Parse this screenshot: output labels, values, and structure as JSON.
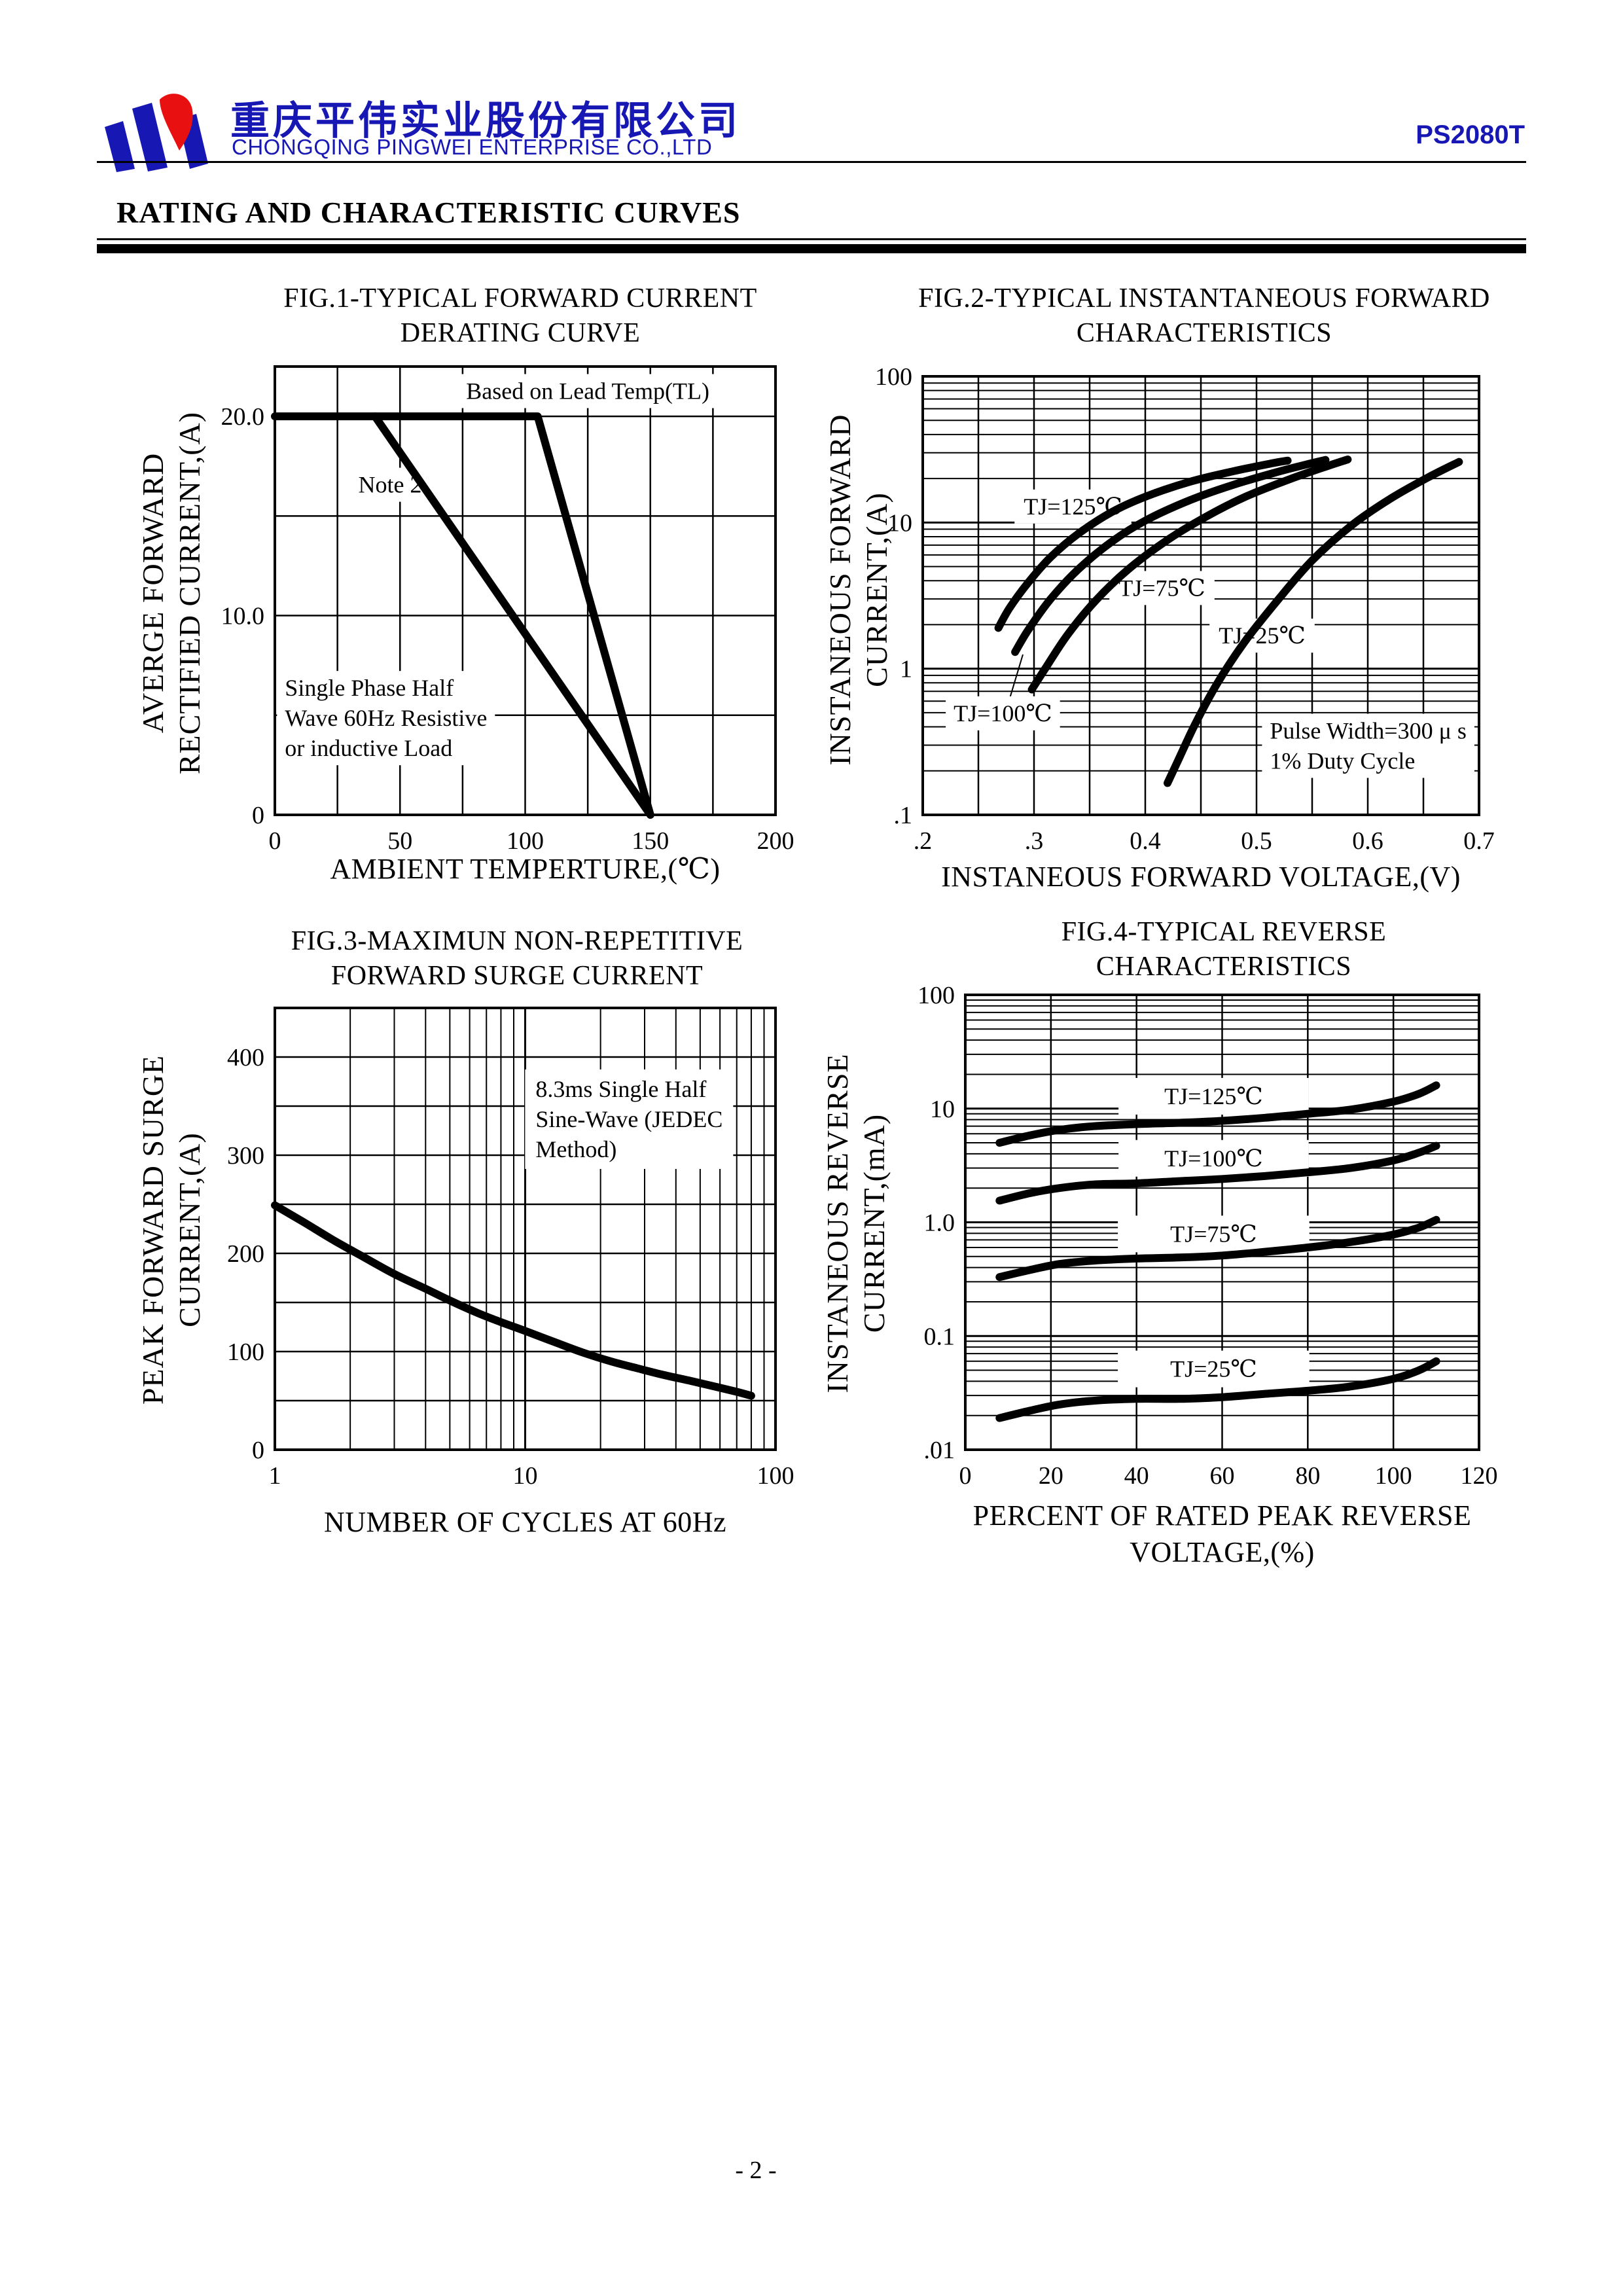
{
  "page": {
    "footer": "- 2 -",
    "section_title": "RATING AND CHARACTERISTIC CURVES",
    "header": {
      "company_cn": "重庆平伟实业股份有限公司",
      "company_en": "CHONGQING PINGWEI ENTERPRISE CO.,LTD",
      "part_number": "PS2080T",
      "brand_blue": "#1717b4",
      "logo_red": "#e81010"
    }
  },
  "figures": [
    {
      "name": "fig1",
      "title_lines": [
        "FIG.1-TYPICAL FORWARD CURRENT",
        "DERATING CURVE"
      ],
      "xlabel_lines": [
        "AMBIENT TEMPERTURE,(℃)"
      ],
      "ylabel_lines": [
        "AVERGE FORWARD",
        "RECTIFIED CURRENT,(A)"
      ],
      "chart_data": {
        "type": "line",
        "x_axis": {
          "scale": "linear",
          "min": 0,
          "max": 200,
          "grid_step": 25,
          "ticks": [
            {
              "v": 0,
              "t": "0"
            },
            {
              "v": 50,
              "t": "50"
            },
            {
              "v": 100,
              "t": "100"
            },
            {
              "v": 150,
              "t": "150"
            },
            {
              "v": 200,
              "t": "200"
            }
          ]
        },
        "y_axis": {
          "scale": "linear",
          "min": 0,
          "max": 22.5,
          "grid_step": 5,
          "ticks": [
            {
              "v": 20,
              "t": "20.0"
            },
            {
              "v": 10,
              "t": "10.0"
            },
            {
              "v": 0,
              "t": "0"
            }
          ]
        },
        "series": [
          {
            "name": "based-on-lead-temp",
            "straight": true,
            "points": [
              [
                0,
                20
              ],
              [
                105,
                20
              ],
              [
                150,
                0
              ]
            ]
          },
          {
            "name": "note-2",
            "straight": true,
            "points": [
              [
                40,
                20
              ],
              [
                150,
                0
              ]
            ]
          }
        ],
        "annotations": [
          {
            "lines": [
              "Based on Lead Temp(TL)"
            ],
            "x": 125,
            "y": 21.3,
            "anchor": "middle",
            "box": true
          },
          {
            "lines": [
              "Note 2"
            ],
            "x": 46,
            "y": 16.6,
            "anchor": "middle",
            "box": true
          },
          {
            "lines": [
              "Single Phase Half",
              "Wave 60Hz Resistive",
              "or inductive Load"
            ],
            "x": 4,
            "y": 6.4,
            "anchor": "start",
            "box": true
          }
        ]
      }
    },
    {
      "name": "fig2",
      "title_lines": [
        "FIG.2-TYPICAL INSTANTANEOUS FORWARD",
        "CHARACTERISTICS"
      ],
      "xlabel_lines": [
        "INSTANEOUS FORWARD VOLTAGE,(V)"
      ],
      "ylabel_lines": [
        "INSTANEOUS FORWARD",
        "CURRENT,(A)"
      ],
      "chart_data": {
        "type": "line",
        "x_axis": {
          "scale": "linear",
          "min": 0.2,
          "max": 0.7,
          "grid_step": 0.05,
          "ticks": [
            {
              "v": 0.2,
              "t": ".2"
            },
            {
              "v": 0.3,
              "t": ".3"
            },
            {
              "v": 0.4,
              "t": "0.4"
            },
            {
              "v": 0.5,
              "t": "0.5"
            },
            {
              "v": 0.6,
              "t": "0.6"
            },
            {
              "v": 0.7,
              "t": "0.7"
            }
          ]
        },
        "y_axis": {
          "scale": "log",
          "min": 0.1,
          "max": 100,
          "ticks": [
            {
              "v": 100,
              "t": "100"
            },
            {
              "v": 10,
              "t": "10"
            },
            {
              "v": 1,
              "t": "1"
            },
            {
              "v": 0.1,
              "t": ".1"
            }
          ]
        },
        "series": [
          {
            "name": "tj-125c",
            "points": [
              [
                0.268,
                1.9
              ],
              [
                0.278,
                2.6
              ],
              [
                0.295,
                3.9
              ],
              [
                0.315,
                5.8
              ],
              [
                0.34,
                8.4
              ],
              [
                0.37,
                11.8
              ],
              [
                0.4,
                15
              ],
              [
                0.44,
                19
              ],
              [
                0.48,
                22.5
              ],
              [
                0.515,
                25.5
              ],
              [
                0.528,
                26.5
              ]
            ]
          },
          {
            "name": "tj-100c",
            "points": [
              [
                0.283,
                1.3
              ],
              [
                0.295,
                1.85
              ],
              [
                0.315,
                3.0
              ],
              [
                0.34,
                4.8
              ],
              [
                0.37,
                7.4
              ],
              [
                0.4,
                10.3
              ],
              [
                0.44,
                14.2
              ],
              [
                0.48,
                18.2
              ],
              [
                0.52,
                22.3
              ],
              [
                0.55,
                25.5
              ],
              [
                0.562,
                26.8
              ]
            ]
          },
          {
            "name": "tj-75c",
            "points": [
              [
                0.298,
                0.72
              ],
              [
                0.31,
                1.0
              ],
              [
                0.33,
                1.7
              ],
              [
                0.355,
                2.9
              ],
              [
                0.385,
                4.8
              ],
              [
                0.42,
                7.6
              ],
              [
                0.455,
                11
              ],
              [
                0.49,
                15
              ],
              [
                0.53,
                19.8
              ],
              [
                0.565,
                24.5
              ],
              [
                0.582,
                27
              ]
            ]
          },
          {
            "name": "tj-25c",
            "points": [
              [
                0.42,
                0.165
              ],
              [
                0.43,
                0.24
              ],
              [
                0.445,
                0.42
              ],
              [
                0.465,
                0.8
              ],
              [
                0.49,
                1.55
              ],
              [
                0.52,
                3.0
              ],
              [
                0.55,
                5.5
              ],
              [
                0.585,
                9.5
              ],
              [
                0.62,
                14.5
              ],
              [
                0.655,
                20.5
              ],
              [
                0.682,
                26
              ]
            ]
          }
        ],
        "annotations": [
          {
            "lines": [
              "TJ=125℃"
            ],
            "x": 0.335,
            "y": 13,
            "anchor": "middle",
            "box": true,
            "pad": [
              14,
              6
            ]
          },
          {
            "lines": [
              "TJ=75℃"
            ],
            "x": 0.415,
            "y": 3.6,
            "anchor": "middle",
            "box": true,
            "pad": [
              14,
              6
            ]
          },
          {
            "lines": [
              "TJ=25℃"
            ],
            "x": 0.505,
            "y": 1.7,
            "anchor": "middle",
            "box": true,
            "pad": [
              14,
              6
            ]
          },
          {
            "lines": [
              "TJ=100℃"
            ],
            "x": 0.272,
            "y": 0.5,
            "anchor": "middle",
            "box": true,
            "pad": [
              12,
              6
            ],
            "leader": [
              [
                0.278,
                0.62
              ],
              [
                0.29,
                1.25
              ]
            ]
          },
          {
            "lines": [
              "Pulse Width=300 μ s",
              "1% Duty Cycle"
            ],
            "x": 0.512,
            "y": 0.38,
            "anchor": "start",
            "box": true
          }
        ]
      }
    },
    {
      "name": "fig3",
      "title_lines": [
        "FIG.3-MAXIMUN NON-REPETITIVE",
        "FORWARD SURGE CURRENT"
      ],
      "xlabel_lines": [
        "NUMBER OF CYCLES AT 60Hz"
      ],
      "ylabel_lines": [
        "PEAK FORWARD SURGE",
        "CURRENT,(A)"
      ],
      "chart_data": {
        "type": "line",
        "x_axis": {
          "scale": "log",
          "min": 1,
          "max": 100,
          "ticks": [
            {
              "v": 1,
              "t": "1"
            },
            {
              "v": 10,
              "t": "10"
            },
            {
              "v": 100,
              "t": "100"
            }
          ]
        },
        "y_axis": {
          "scale": "linear",
          "min": 0,
          "max": 450,
          "grid_step": 50,
          "ticks": [
            {
              "v": 400,
              "t": "400"
            },
            {
              "v": 300,
              "t": "300"
            },
            {
              "v": 200,
              "t": "200"
            },
            {
              "v": 100,
              "t": "100"
            },
            {
              "v": 0,
              "t": "0"
            }
          ]
        },
        "series": [
          {
            "name": "surge-current",
            "points": [
              [
                1,
                249
              ],
              [
                1.3,
                232
              ],
              [
                1.7,
                214
              ],
              [
                2.2,
                198
              ],
              [
                3,
                179
              ],
              [
                4,
                164
              ],
              [
                5,
                152
              ],
              [
                6.5,
                139
              ],
              [
                8,
                130
              ],
              [
                10,
                121
              ],
              [
                13,
                110
              ],
              [
                17,
                99
              ],
              [
                22,
                90
              ],
              [
                28,
                83
              ],
              [
                36,
                76
              ],
              [
                46,
                70
              ],
              [
                58,
                64
              ],
              [
                70,
                59
              ],
              [
                80,
                55
              ]
            ]
          }
        ],
        "annotations": [
          {
            "lines": [
              "8.3ms Single Half",
              "Sine-Wave (JEDEC",
              "Method)"
            ],
            "x": 11,
            "y": 368,
            "anchor": "start",
            "box": true,
            "pad": [
              16,
              10
            ]
          }
        ]
      }
    },
    {
      "name": "fig4",
      "title_lines": [
        "FIG.4-TYPICAL REVERSE",
        "CHARACTERISTICS"
      ],
      "xlabel_lines": [
        "PERCENT OF RATED PEAK REVERSE",
        "VOLTAGE,(%)"
      ],
      "ylabel_lines": [
        "INSTANEOUS REVERSE",
        "CURRENT,(mA)"
      ],
      "chart_data": {
        "type": "line",
        "x_axis": {
          "scale": "linear",
          "min": 0,
          "max": 120,
          "grid_step": 20,
          "ticks": [
            {
              "v": 0,
              "t": "0"
            },
            {
              "v": 20,
              "t": "20"
            },
            {
              "v": 40,
              "t": "40"
            },
            {
              "v": 60,
              "t": "60"
            },
            {
              "v": 80,
              "t": "80"
            },
            {
              "v": 100,
              "t": "100"
            },
            {
              "v": 120,
              "t": "120"
            }
          ]
        },
        "y_axis": {
          "scale": "log",
          "min": 0.01,
          "max": 100,
          "ticks": [
            {
              "v": 100,
              "t": "100"
            },
            {
              "v": 10,
              "t": "10"
            },
            {
              "v": 1,
              "t": "1.0"
            },
            {
              "v": 0.1,
              "t": "0.1"
            },
            {
              "v": 0.01,
              "t": ".01"
            }
          ]
        },
        "series": [
          {
            "name": "tj-125c",
            "points": [
              [
                8,
                5.0
              ],
              [
                15,
                5.8
              ],
              [
                22,
                6.5
              ],
              [
                30,
                7.0
              ],
              [
                40,
                7.3
              ],
              [
                50,
                7.5
              ],
              [
                60,
                7.8
              ],
              [
                70,
                8.3
              ],
              [
                80,
                9.0
              ],
              [
                90,
                9.8
              ],
              [
                100,
                11.5
              ],
              [
                106,
                13.5
              ],
              [
                110,
                16
              ]
            ]
          },
          {
            "name": "tj-100c",
            "points": [
              [
                8,
                1.55
              ],
              [
                15,
                1.8
              ],
              [
                22,
                2.0
              ],
              [
                30,
                2.15
              ],
              [
                40,
                2.2
              ],
              [
                50,
                2.3
              ],
              [
                60,
                2.4
              ],
              [
                70,
                2.55
              ],
              [
                80,
                2.75
              ],
              [
                90,
                3.0
              ],
              [
                100,
                3.5
              ],
              [
                106,
                4.1
              ],
              [
                110,
                4.7
              ]
            ]
          },
          {
            "name": "tj-75c",
            "points": [
              [
                8,
                0.33
              ],
              [
                15,
                0.38
              ],
              [
                22,
                0.43
              ],
              [
                30,
                0.46
              ],
              [
                40,
                0.48
              ],
              [
                50,
                0.49
              ],
              [
                60,
                0.51
              ],
              [
                70,
                0.55
              ],
              [
                80,
                0.6
              ],
              [
                90,
                0.67
              ],
              [
                100,
                0.78
              ],
              [
                106,
                0.9
              ],
              [
                110,
                1.05
              ]
            ]
          },
          {
            "name": "tj-25c",
            "points": [
              [
                8,
                0.019
              ],
              [
                15,
                0.022
              ],
              [
                22,
                0.025
              ],
              [
                30,
                0.027
              ],
              [
                40,
                0.028
              ],
              [
                50,
                0.028
              ],
              [
                60,
                0.029
              ],
              [
                70,
                0.031
              ],
              [
                80,
                0.033
              ],
              [
                90,
                0.036
              ],
              [
                100,
                0.042
              ],
              [
                106,
                0.05
              ],
              [
                110,
                0.06
              ]
            ]
          }
        ],
        "annotations": [
          {
            "lines": [
              "TJ=125℃"
            ],
            "x": 58,
            "y": 13,
            "anchor": "middle",
            "box": true,
            "pad": [
              70,
              8
            ]
          },
          {
            "lines": [
              "TJ=100℃"
            ],
            "x": 58,
            "y": 3.7,
            "anchor": "middle",
            "box": true,
            "pad": [
              70,
              8
            ]
          },
          {
            "lines": [
              "TJ=75℃"
            ],
            "x": 58,
            "y": 0.8,
            "anchor": "middle",
            "box": true,
            "pad": [
              80,
              8
            ]
          },
          {
            "lines": [
              "TJ=25℃"
            ],
            "x": 58,
            "y": 0.052,
            "anchor": "middle",
            "box": true,
            "pad": [
              80,
              8
            ]
          }
        ]
      }
    }
  ]
}
